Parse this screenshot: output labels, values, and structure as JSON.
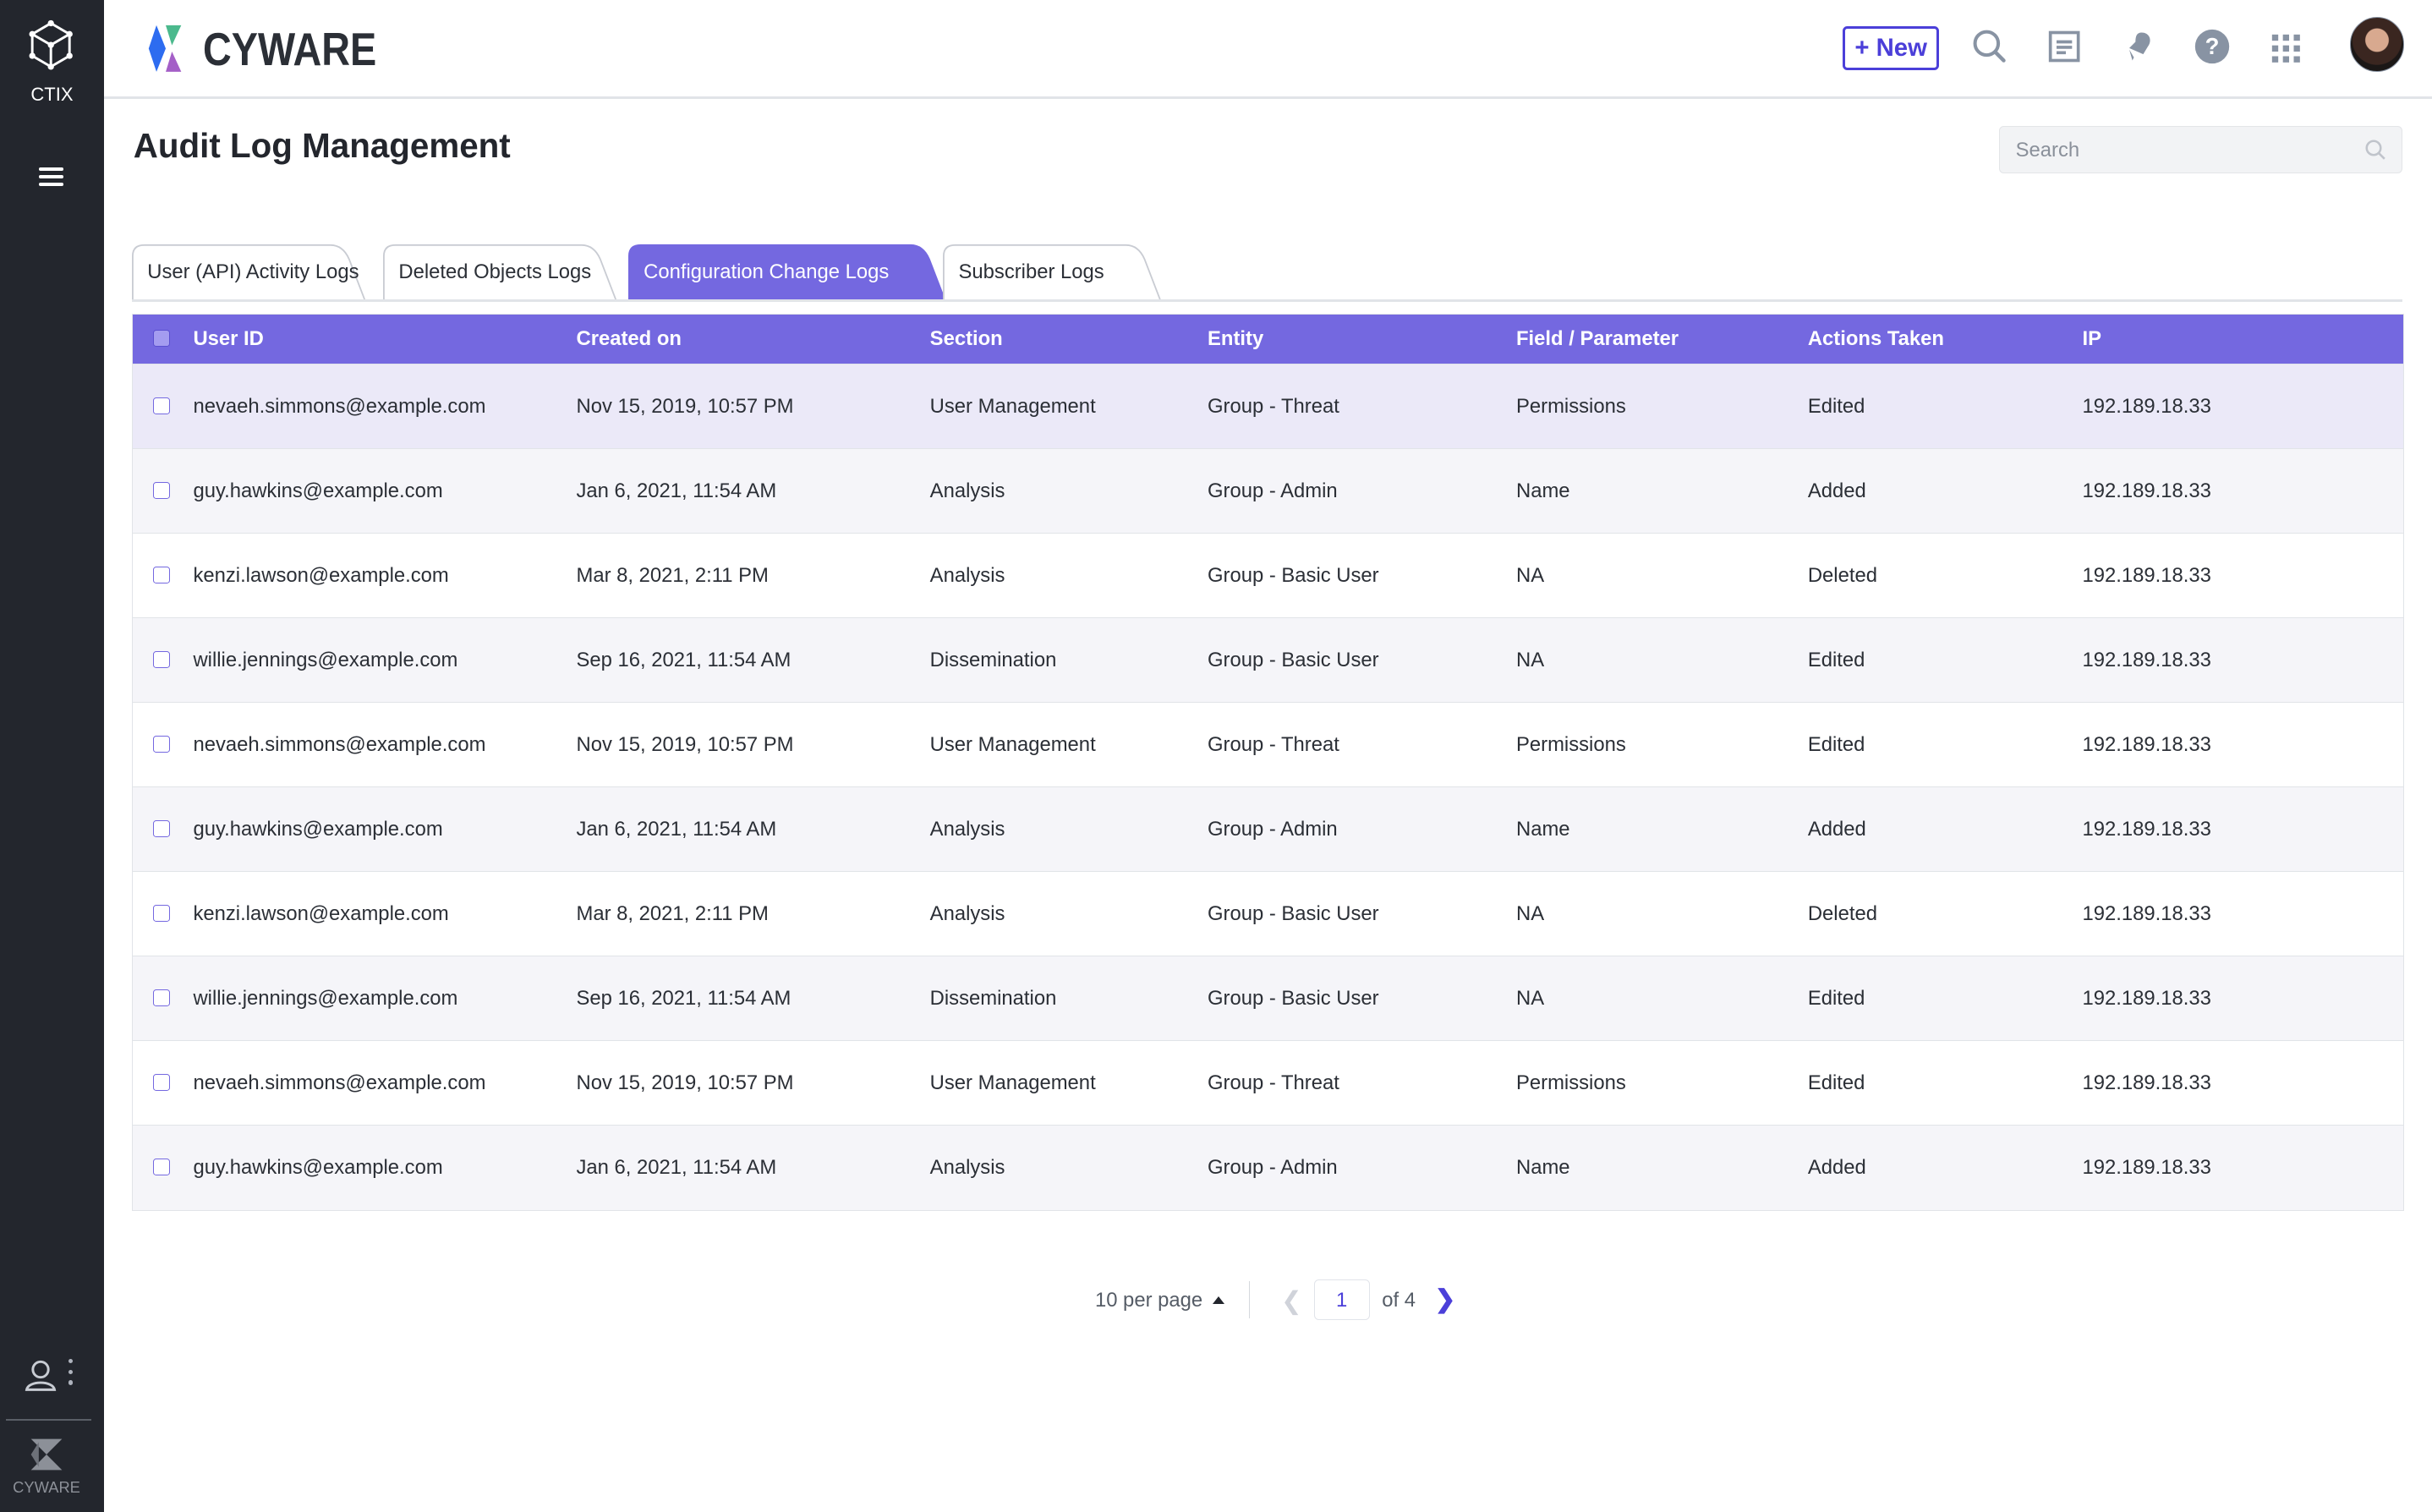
{
  "sidebar": {
    "app_label": "CTIX",
    "footer_label": "CYWARE"
  },
  "topbar": {
    "brand": "CYWARE",
    "new_button": "+ New"
  },
  "page": {
    "title": "Audit Log Management",
    "search_placeholder": "Search"
  },
  "tabs": [
    {
      "label": "User (API) Activity Logs",
      "active": false
    },
    {
      "label": "Deleted Objects Logs",
      "active": false
    },
    {
      "label": "Configuration Change Logs",
      "active": true
    },
    {
      "label": "Subscriber Logs",
      "active": false
    }
  ],
  "table": {
    "columns": [
      "User ID",
      "Created on",
      "Section",
      "Entity",
      "Field / Parameter",
      "Actions Taken",
      "IP"
    ],
    "rows": [
      [
        "nevaeh.simmons@example.com",
        "Nov 15, 2019, 10:57 PM",
        "User Management",
        "Group - Threat",
        "Permissions",
        "Edited",
        "192.189.18.33"
      ],
      [
        "guy.hawkins@example.com",
        "Jan 6, 2021, 11:54 AM",
        "Analysis",
        "Group - Admin",
        "Name",
        "Added",
        "192.189.18.33"
      ],
      [
        "kenzi.lawson@example.com",
        "Mar 8, 2021, 2:11 PM",
        "Analysis",
        "Group - Basic User",
        "NA",
        "Deleted",
        "192.189.18.33"
      ],
      [
        "willie.jennings@example.com",
        "Sep 16, 2021, 11:54 AM",
        "Dissemination",
        "Group - Basic User",
        "NA",
        "Edited",
        "192.189.18.33"
      ],
      [
        "nevaeh.simmons@example.com",
        "Nov 15, 2019, 10:57 PM",
        "User Management",
        "Group - Threat",
        "Permissions",
        "Edited",
        "192.189.18.33"
      ],
      [
        "guy.hawkins@example.com",
        "Jan 6, 2021, 11:54 AM",
        "Analysis",
        "Group - Admin",
        "Name",
        "Added",
        "192.189.18.33"
      ],
      [
        "kenzi.lawson@example.com",
        "Mar 8, 2021, 2:11 PM",
        "Analysis",
        "Group - Basic User",
        "NA",
        "Deleted",
        "192.189.18.33"
      ],
      [
        "willie.jennings@example.com",
        "Sep 16, 2021, 11:54 AM",
        "Dissemination",
        "Group - Basic User",
        "NA",
        "Edited",
        "192.189.18.33"
      ],
      [
        "nevaeh.simmons@example.com",
        "Nov 15, 2019, 10:57 PM",
        "User Management",
        "Group - Threat",
        "Permissions",
        "Edited",
        "192.189.18.33"
      ],
      [
        "guy.hawkins@example.com",
        "Jan 6, 2021, 11:54 AM",
        "Analysis",
        "Group - Admin",
        "Name",
        "Added",
        "192.189.18.33"
      ]
    ]
  },
  "pagination": {
    "per_page": "10 per page",
    "current_page": "1",
    "of_total": "of 4"
  },
  "colors": {
    "accent": "#7468e0",
    "primary": "#4b3fd9",
    "sidebar": "#23262d",
    "row_highlight": "#ebe9f8"
  },
  "icons": [
    "ctix-cube-icon",
    "menu-icon",
    "search-icon",
    "notes-icon",
    "bell-icon",
    "help-icon",
    "apps-grid-icon",
    "user-icon",
    "more-vertical-icon",
    "cyware-logo-icon",
    "chevron-left-icon",
    "chevron-right-icon",
    "caret-up-icon"
  ]
}
